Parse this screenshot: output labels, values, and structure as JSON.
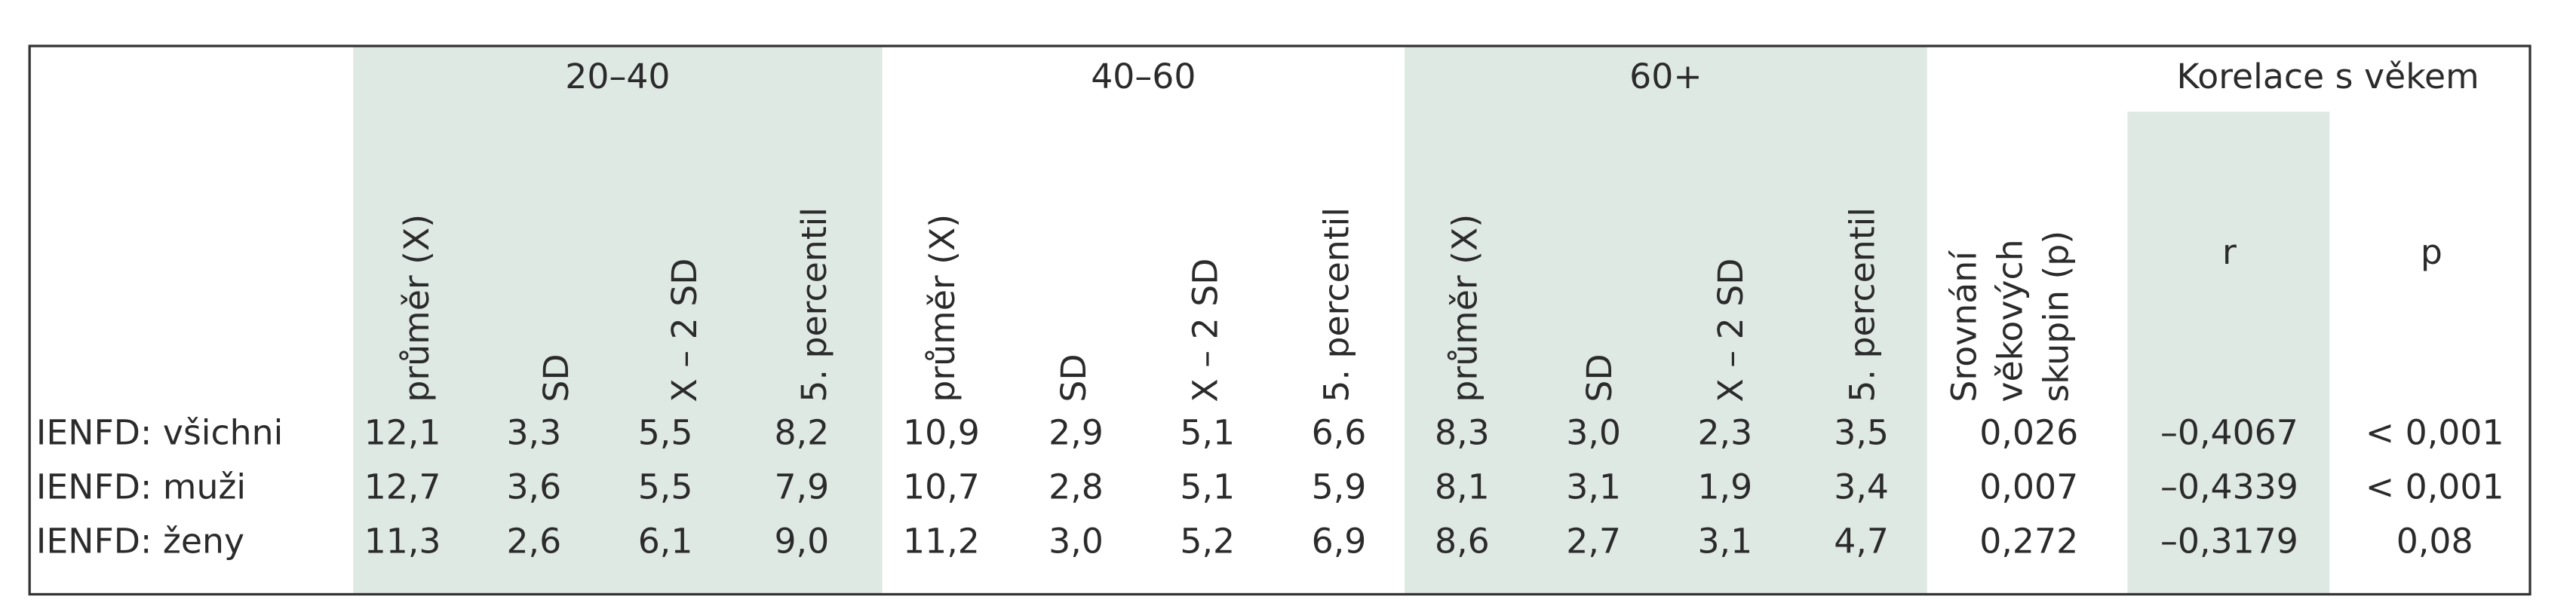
{
  "header": {
    "groups": [
      "20–40",
      "40–60",
      "60+"
    ],
    "correlation": "Korelace s věkem"
  },
  "columns": [
    "průměr (X)",
    "SD",
    "X – 2 SD",
    "5. percentil",
    "průměr (X)",
    "SD",
    "X – 2 SD",
    "5. percentil",
    "průměr (X)",
    "SD",
    "X – 2 SD",
    "5. percentil"
  ],
  "comparison": [
    "Srovnání",
    "věkových",
    "skupin (p)"
  ],
  "correlation_columns": [
    "r",
    "p"
  ],
  "rows": [
    {
      "label": "IENFD: všichni",
      "values": [
        "12,1",
        "3,3",
        "5,5",
        "8,2",
        "10,9",
        "2,9",
        "5,1",
        "6,6",
        "8,3",
        "3,0",
        "2,3",
        "3,5",
        "0,026",
        "–0,4067",
        "< 0,001"
      ]
    },
    {
      "label": "IENFD: muži",
      "values": [
        "12,7",
        "3,6",
        "5,5",
        "7,9",
        "10,7",
        "2,8",
        "5,1",
        "5,9",
        "8,1",
        "3,1",
        "1,9",
        "3,4",
        "0,007",
        "–0,4339",
        "< 0,001"
      ]
    },
    {
      "label": "IENFD: ženy",
      "values": [
        "11,3",
        "2,6",
        "6,1",
        "9,0",
        "11,2",
        "3,0",
        "5,2",
        "6,9",
        "8,6",
        "2,7",
        "3,1",
        "4,7",
        "0,272",
        "–0,3179",
        "0,08"
      ]
    }
  ]
}
